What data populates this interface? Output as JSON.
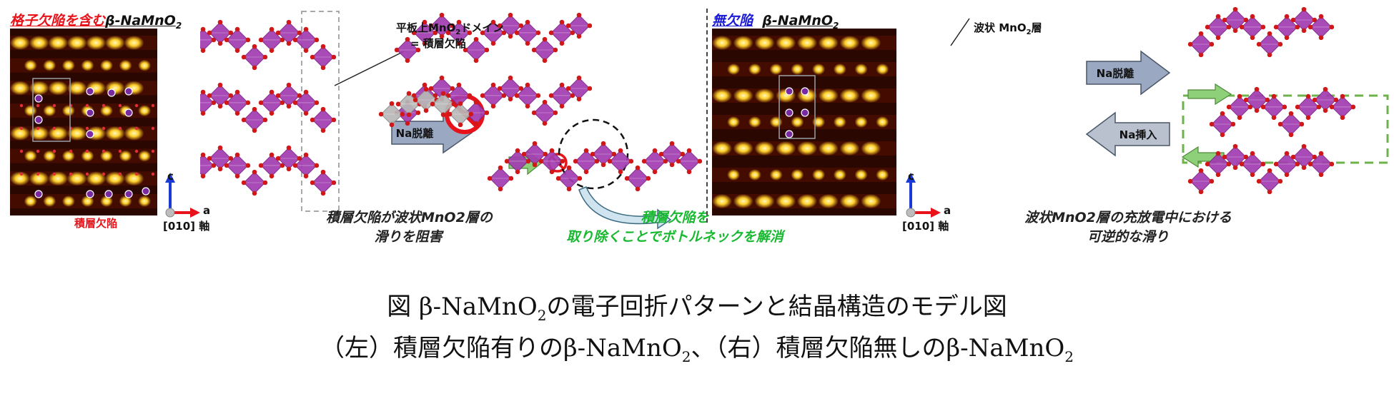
{
  "left_panel": {
    "title_red": "格子欠陥を含む",
    "title_black": "β-NaMnO",
    "title_sub": "2",
    "stacking_fault_label": "積層欠陥"
  },
  "right_panel": {
    "title_blue": "無欠陥",
    "title_black": "β-NaMnO",
    "title_sub": "2"
  },
  "axes": {
    "c": "c",
    "a": "a",
    "zone_axis": "[010] 軸"
  },
  "annotations": {
    "planar_domain": "平板上MnO",
    "planar_domain_sub": "2",
    "planar_domain_tail": "ドメイン",
    "planar_equals": "= 積層欠陥",
    "wavy_layer": "波状 MnO",
    "wavy_layer_sub": "2",
    "wavy_layer_tail": "層"
  },
  "arrows": {
    "na_desorption_left": "Na脱離",
    "na_desorption_right": "Na脱離",
    "na_insertion": "Na挿入"
  },
  "captions": {
    "block_line1": "積層欠陥が波状MnO2層の",
    "block_line2": "滑りを阻害",
    "remove_line1": "積層欠陥を",
    "remove_line2": "取り除くことでボトルネックを解消",
    "reversible_line1": "波状MnO2層の充放電中における",
    "reversible_line2": "可逆的な滑り"
  },
  "figure_caption": {
    "line1_prefix": "図 β-NaMnO",
    "line1_sub": "2",
    "line1_suffix": "の電子回折パターンと結晶構造のモデル図",
    "line2_a": "（左）積層欠陥有りのβ-NaMnO",
    "line2_sub1": "2",
    "line2_b": "、（右）積層欠陥無しのβ-NaMnO",
    "line2_sub2": "2"
  },
  "colors": {
    "octahedron": "#a23cb0",
    "octahedron_light": "#c06ac8",
    "oxygen": "#d01818",
    "defect_gray": "#b8b8b8",
    "arrow_blue": "#9aa8c2",
    "arrow_green": "#8ed07a",
    "dashed_green": "#6db24a",
    "spot_glow": "#ffcf2a",
    "pattern_bg": "#2a0700"
  }
}
